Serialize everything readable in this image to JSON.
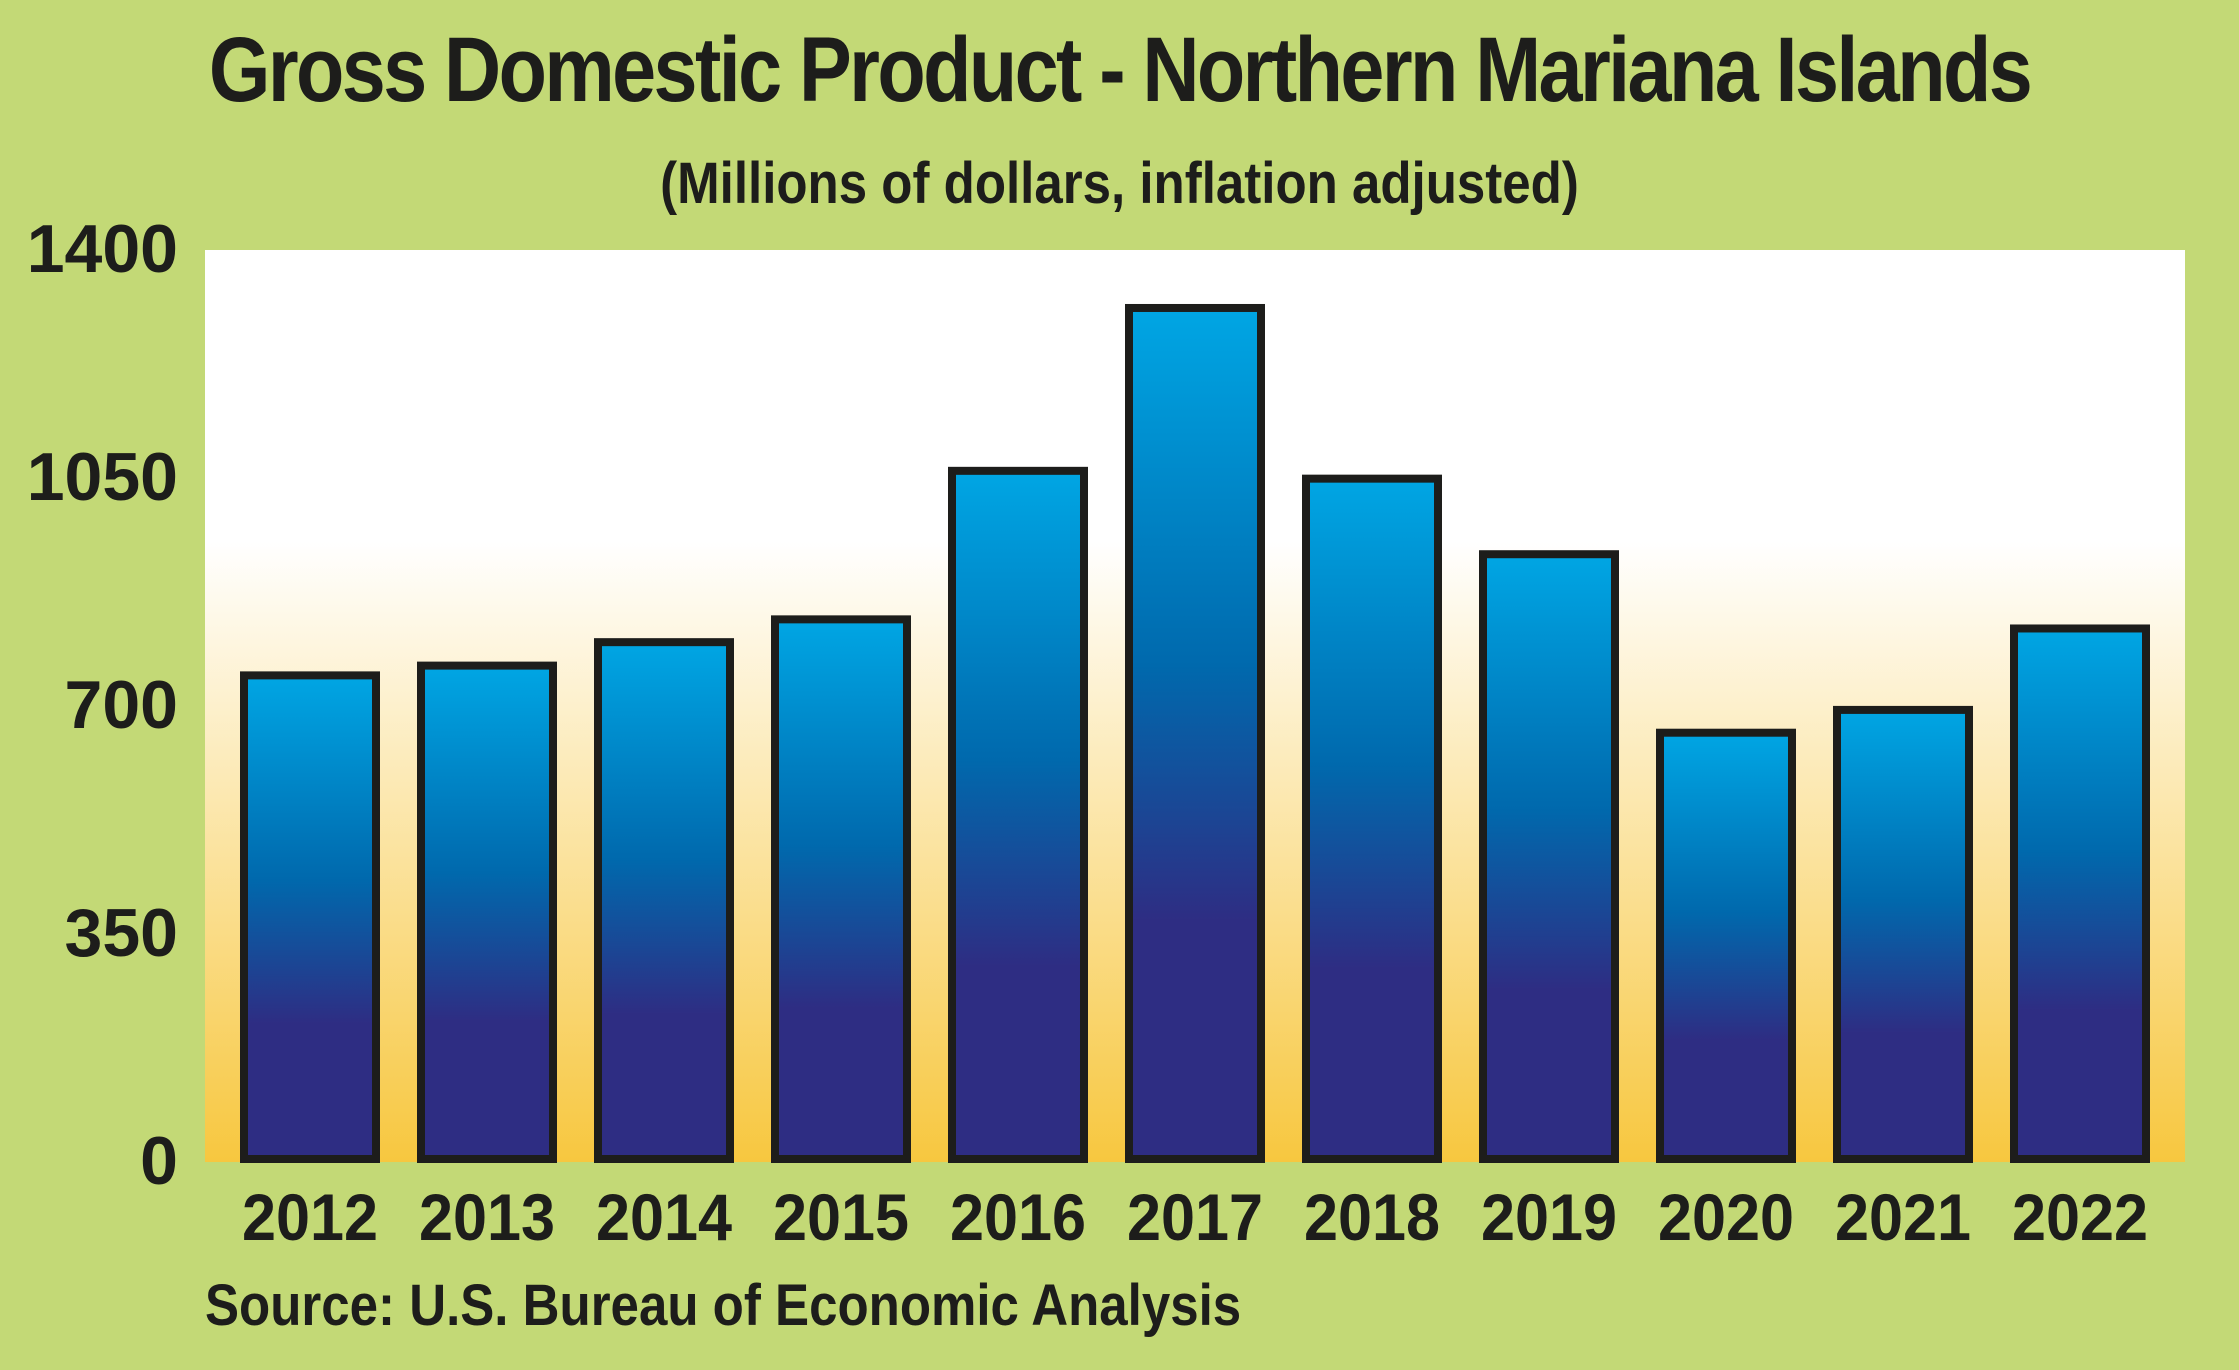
{
  "colors": {
    "background": "#c3d976",
    "plot_top": "#ffffff",
    "plot_bottom": "#f7c73f",
    "bar_top": "#00a6e4",
    "bar_mid": "#0069ad",
    "bar_bottom": "#2e2d83",
    "bar_outline": "#1d1d1b",
    "text": "#1d1d1b"
  },
  "chart_data": {
    "type": "bar",
    "title": "Gross Domestic Product - Northern Mariana Islands",
    "subtitle": "(Millions of dollars, inflation adjusted)",
    "xlabel": "",
    "ylabel": "",
    "categories": [
      "2012",
      "2013",
      "2014",
      "2015",
      "2016",
      "2017",
      "2018",
      "2019",
      "2020",
      "2021",
      "2022"
    ],
    "values": [
      747,
      762,
      798,
      833,
      1061,
      1311,
      1049,
      933,
      659,
      694,
      819
    ],
    "ylim": [
      0,
      1400
    ],
    "yticks": [
      "0",
      "350",
      "700",
      "1050",
      "1400"
    ],
    "grid": false,
    "legend": "none",
    "source": "Source: U.S. Bureau of Economic Analysis"
  }
}
